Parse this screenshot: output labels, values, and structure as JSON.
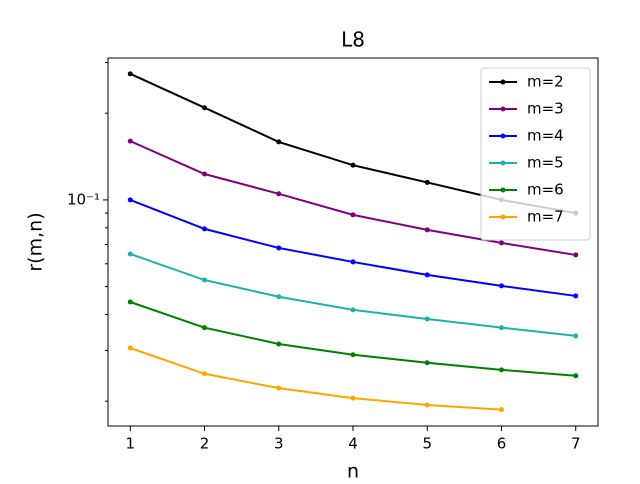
{
  "chart_data": {
    "type": "line",
    "title": "L8",
    "x_label": "n",
    "y_label": "r(m,n)",
    "x": [
      1,
      2,
      3,
      4,
      5,
      6,
      7
    ],
    "xlim": [
      0.7,
      7.3
    ],
    "xticks": [
      1,
      2,
      3,
      4,
      5,
      6,
      7
    ],
    "y_scale": "log",
    "ylim": [
      0.0164,
      0.311
    ],
    "yticks": [
      {
        "value": 0.1,
        "label": "10⁻¹"
      }
    ],
    "minor_yticks": [
      0.02,
      0.03,
      0.04,
      0.05,
      0.06,
      0.07,
      0.08,
      0.09,
      0.2,
      0.3
    ],
    "legend": "upper right",
    "series": [
      {
        "name": "m=2",
        "color": "#000000",
        "values": [
          0.274,
          0.209,
          0.159,
          0.132,
          0.115,
          0.1,
          0.09
        ]
      },
      {
        "name": "m=3",
        "color": "#800080",
        "values": [
          0.16,
          0.123,
          0.105,
          0.0887,
          0.0787,
          0.0709,
          0.0644
        ]
      },
      {
        "name": "m=4",
        "color": "#0000ff",
        "values": [
          0.1,
          0.0793,
          0.0681,
          0.0609,
          0.0549,
          0.0503,
          0.0464
        ]
      },
      {
        "name": "m=5",
        "color": "#20b2aa",
        "values": [
          0.0649,
          0.0527,
          0.0461,
          0.0415,
          0.0386,
          0.036,
          0.0337
        ]
      },
      {
        "name": "m=6",
        "color": "#008000",
        "values": [
          0.0442,
          0.036,
          0.0316,
          0.029,
          0.0272,
          0.0257,
          0.0245
        ]
      },
      {
        "name": "m=7",
        "color": "#ffa500",
        "values": [
          0.0306,
          0.0249,
          0.0222,
          0.0205,
          0.0194,
          0.0187,
          null
        ]
      }
    ]
  }
}
